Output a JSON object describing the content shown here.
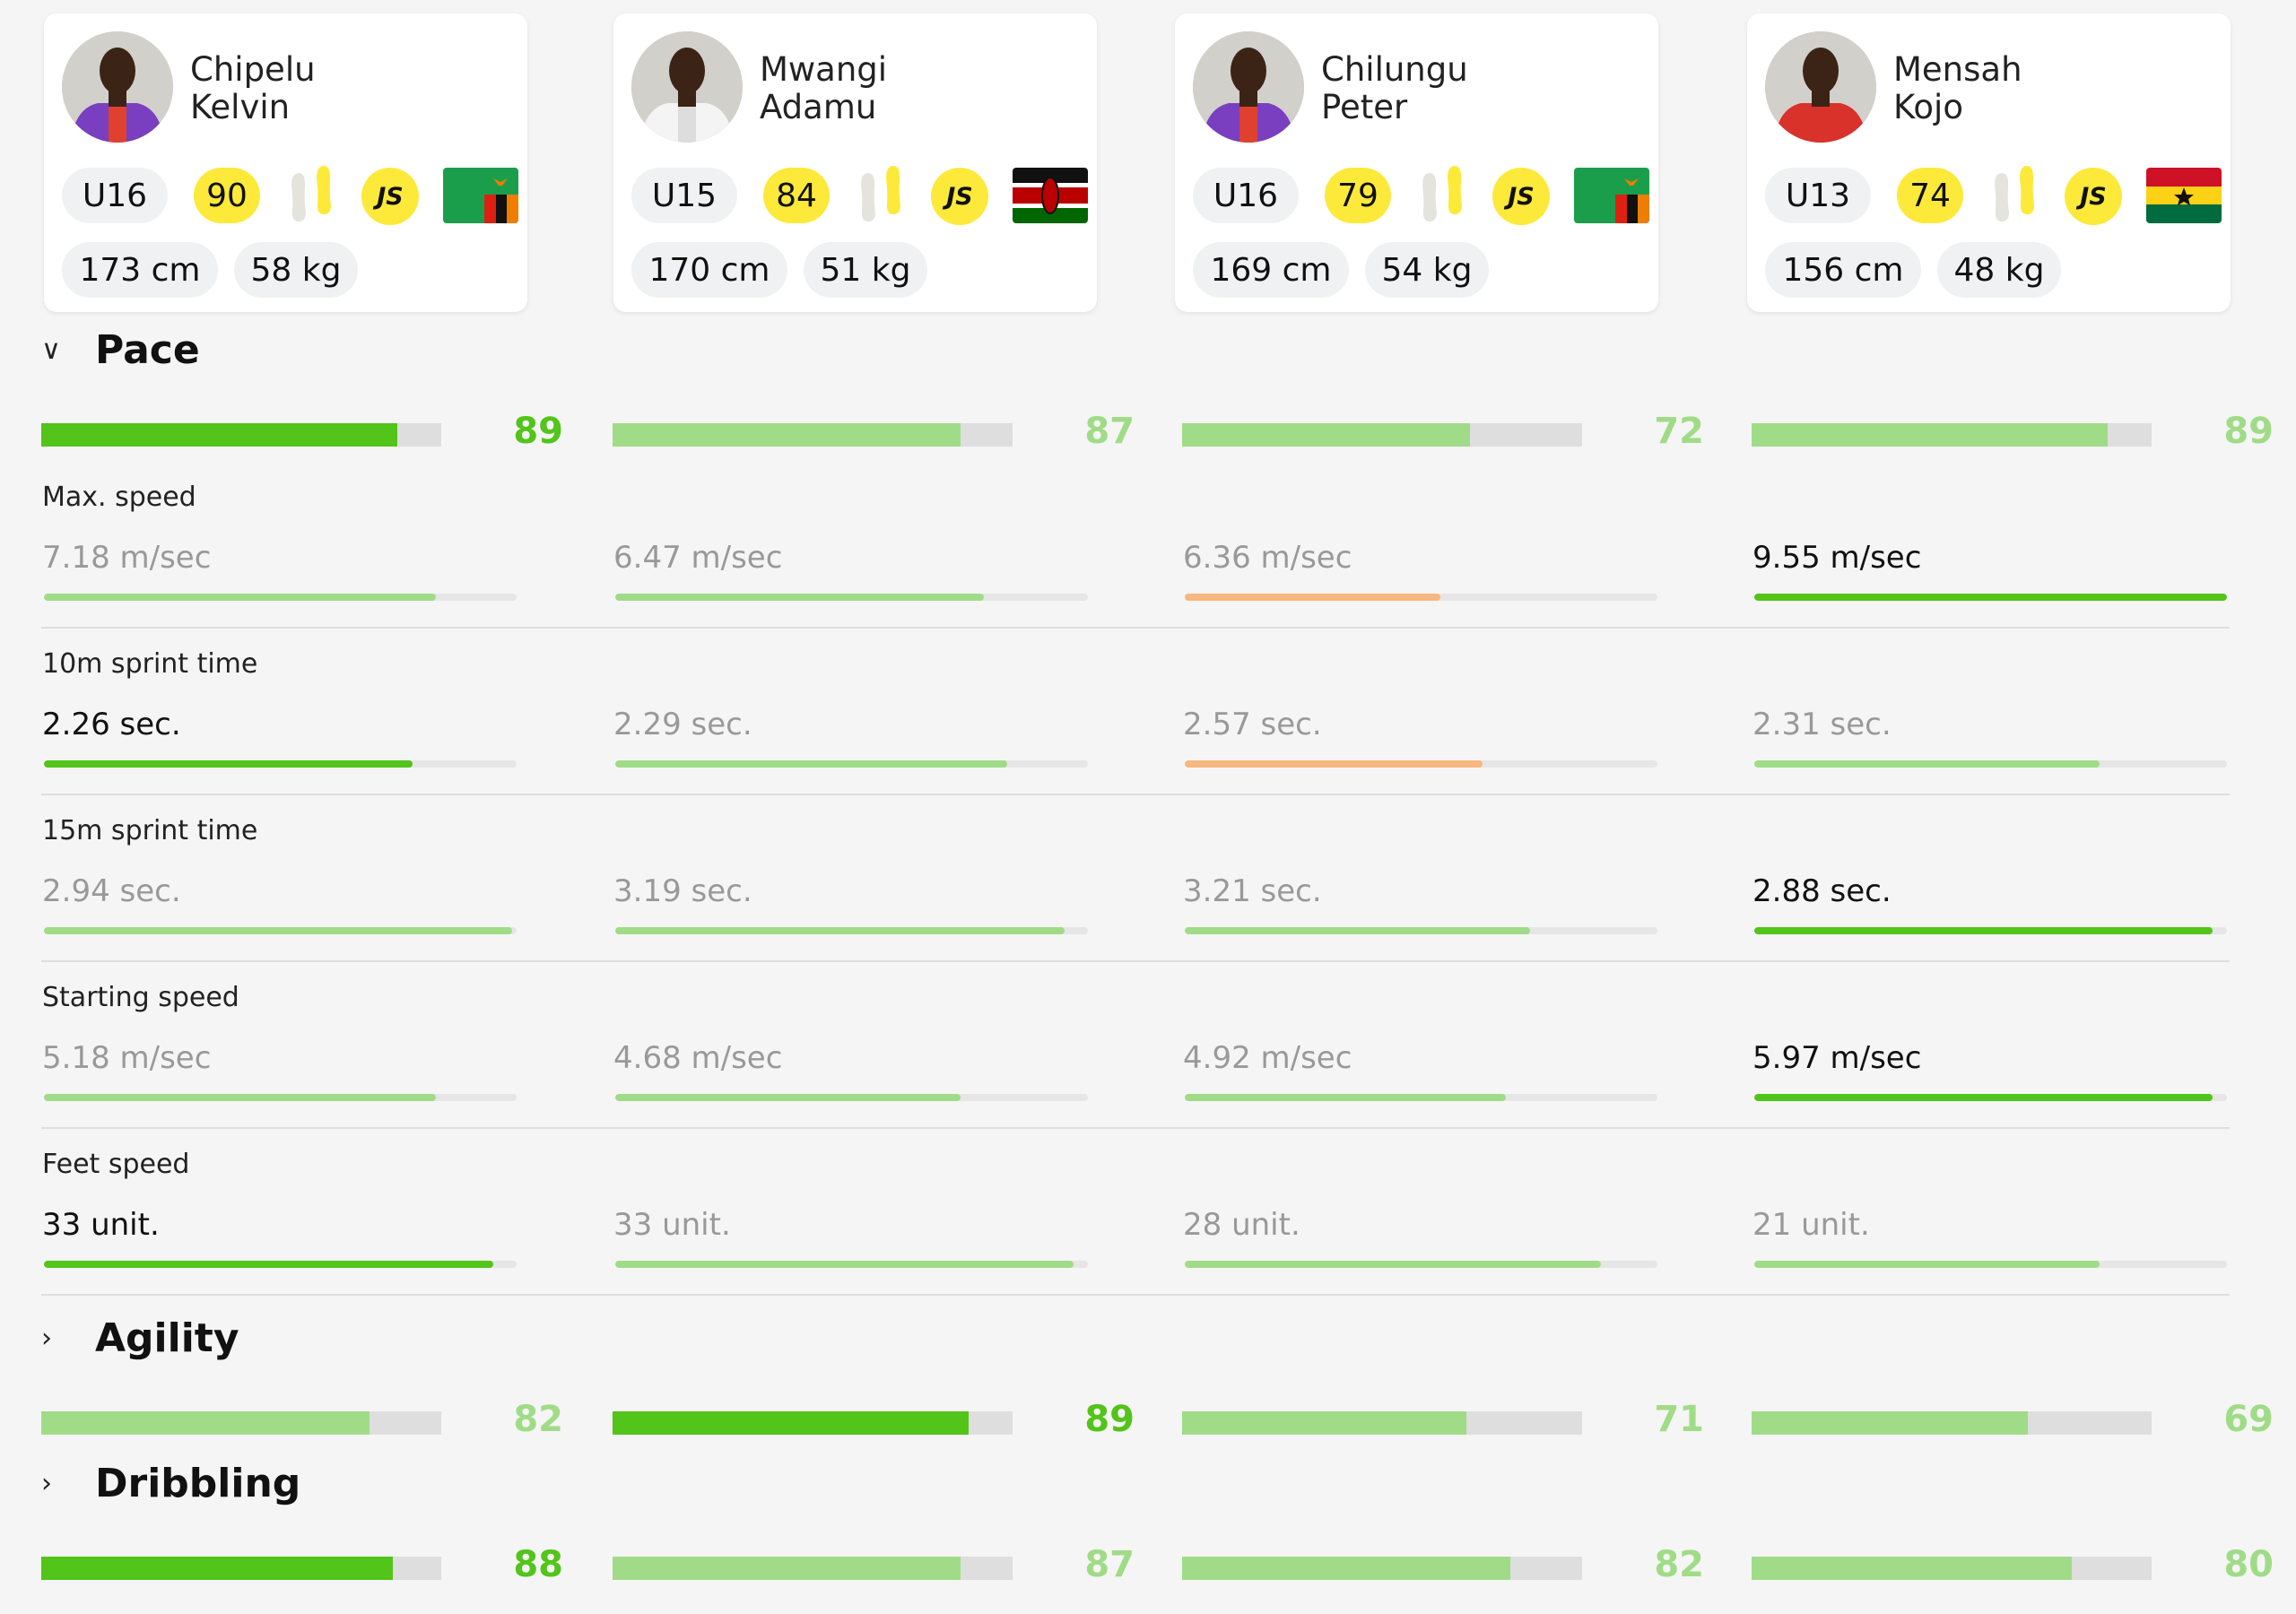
{
  "colors": {
    "best": "#52c41a",
    "good": "#a0dc87",
    "weak": "#f7b77f",
    "track": "#e4e4e4",
    "rating": "#fde93a"
  },
  "players": [
    {
      "first": "Chipelu",
      "last": "Kelvin",
      "age_group": "U16",
      "rating": "90",
      "badge": "JS",
      "height": "173 cm",
      "weight": "58 kg",
      "flag": "zambia",
      "shirt": "purple-red"
    },
    {
      "first": "Mwangi",
      "last": "Adamu",
      "age_group": "U15",
      "rating": "84",
      "badge": "JS",
      "height": "170 cm",
      "weight": "51 kg",
      "flag": "kenya",
      "shirt": "white"
    },
    {
      "first": "Chilungu",
      "last": "Peter",
      "age_group": "U16",
      "rating": "79",
      "badge": "JS",
      "height": "169 cm",
      "weight": "54 kg",
      "flag": "zambia",
      "shirt": "purple-red"
    },
    {
      "first": "Mensah",
      "last": "Kojo",
      "age_group": "U13",
      "rating": "74",
      "badge": "JS",
      "height": "156 cm",
      "weight": "48 kg",
      "flag": "ghana",
      "shirt": "red"
    }
  ],
  "sections": [
    {
      "title": "Pace",
      "expanded": true,
      "scores": [
        {
          "v": "89",
          "best": true
        },
        {
          "v": "87",
          "best": false
        },
        {
          "v": "72",
          "best": false
        },
        {
          "v": "89",
          "best": false
        }
      ],
      "metrics": [
        {
          "label": "Max. speed",
          "values": [
            {
              "v": "7.18 m/sec",
              "p": 0.83,
              "c": "good"
            },
            {
              "v": "6.47 m/sec",
              "p": 0.78,
              "c": "good"
            },
            {
              "v": "6.36 m/sec",
              "p": 0.54,
              "c": "weak"
            },
            {
              "v": "9.55 m/sec",
              "p": 1.0,
              "c": "best"
            }
          ]
        },
        {
          "label": "10m sprint time",
          "values": [
            {
              "v": "2.26 sec.",
              "p": 0.78,
              "c": "best"
            },
            {
              "v": "2.29 sec.",
              "p": 0.83,
              "c": "good"
            },
            {
              "v": "2.57 sec.",
              "p": 0.63,
              "c": "weak"
            },
            {
              "v": "2.31 sec.",
              "p": 0.73,
              "c": "good"
            }
          ]
        },
        {
          "label": "15m sprint time",
          "values": [
            {
              "v": "2.94 sec.",
              "p": 0.99,
              "c": "good"
            },
            {
              "v": "3.19 sec.",
              "p": 0.95,
              "c": "good"
            },
            {
              "v": "3.21 sec.",
              "p": 0.73,
              "c": "good"
            },
            {
              "v": "2.88 sec.",
              "p": 0.97,
              "c": "best"
            }
          ]
        },
        {
          "label": "Starting speed",
          "values": [
            {
              "v": "5.18 m/sec",
              "p": 0.83,
              "c": "good"
            },
            {
              "v": "4.68 m/sec",
              "p": 0.73,
              "c": "good"
            },
            {
              "v": "4.92 m/sec",
              "p": 0.68,
              "c": "good"
            },
            {
              "v": "5.97 m/sec",
              "p": 0.97,
              "c": "best"
            }
          ]
        },
        {
          "label": "Feet speed",
          "values": [
            {
              "v": "33 unit.",
              "p": 0.95,
              "c": "best"
            },
            {
              "v": "33 unit.",
              "p": 0.97,
              "c": "good"
            },
            {
              "v": "28 unit.",
              "p": 0.88,
              "c": "good"
            },
            {
              "v": "21 unit.",
              "p": 0.73,
              "c": "good"
            }
          ]
        }
      ]
    },
    {
      "title": "Agility",
      "expanded": false,
      "scores": [
        {
          "v": "82",
          "best": false
        },
        {
          "v": "89",
          "best": true
        },
        {
          "v": "71",
          "best": false
        },
        {
          "v": "69",
          "best": false
        }
      ],
      "metrics": []
    },
    {
      "title": "Dribbling",
      "expanded": false,
      "scores": [
        {
          "v": "88",
          "best": true
        },
        {
          "v": "87",
          "best": false
        },
        {
          "v": "82",
          "best": false
        },
        {
          "v": "80",
          "best": false
        }
      ],
      "metrics": []
    }
  ]
}
